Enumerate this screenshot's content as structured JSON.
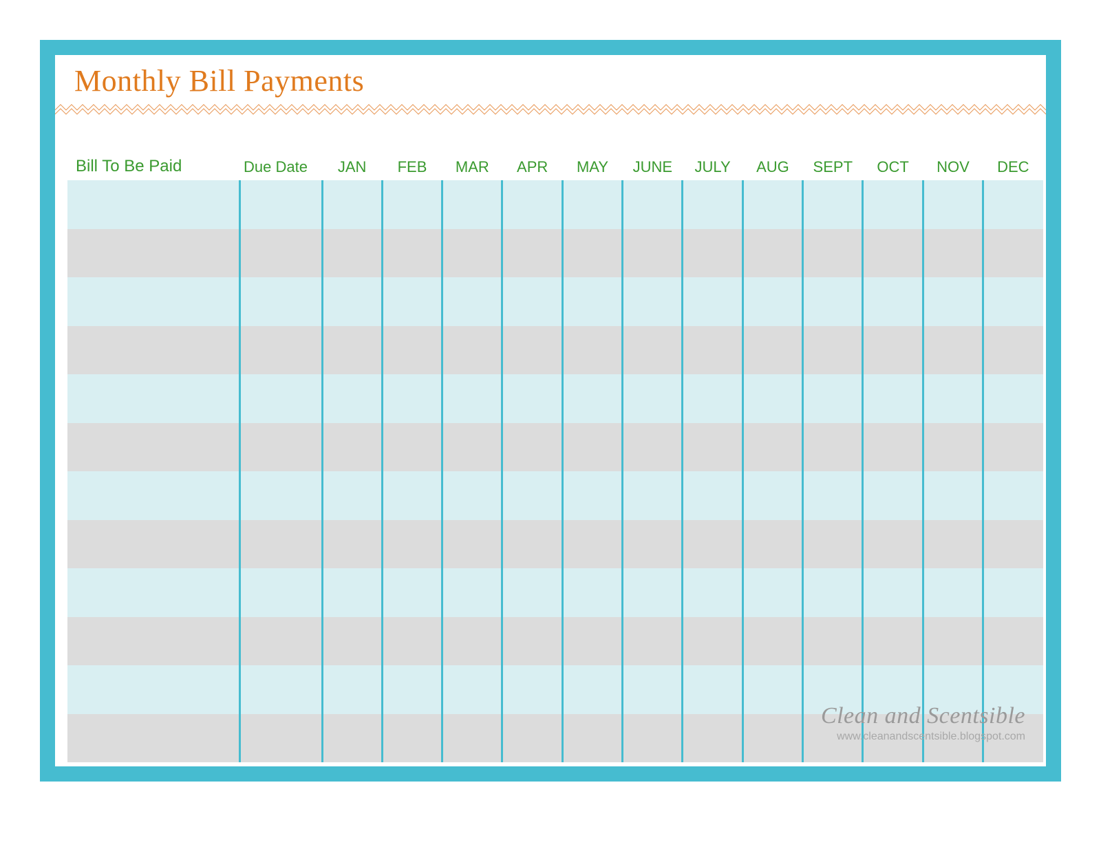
{
  "title": "Monthly Bill Payments",
  "columns": {
    "bill": "Bill To Be Paid",
    "due": "Due Date",
    "months": [
      "JAN",
      "FEB",
      "MAR",
      "APR",
      "MAY",
      "JUNE",
      "JULY",
      "AUG",
      "SEPT",
      "OCT",
      "NOV",
      "DEC"
    ]
  },
  "row_count": 12,
  "colors": {
    "frame": "#46bcd0",
    "title_color": "#e07b1f",
    "header_text": "#3a9a2f",
    "row_odd": "#d9eff2",
    "row_even": "#dcdcdc",
    "divider": "#46bcd0",
    "zigzag": "#e89a5a",
    "watermark_title": "#9a9a9a",
    "watermark_url": "#a8a8a8"
  },
  "zigzag": {
    "period": 16,
    "amplitude": 8,
    "stroke_width": 1
  },
  "watermark": {
    "title": "Clean and Scentsible",
    "url": "www.cleanandscentsible.blogspot.com"
  }
}
